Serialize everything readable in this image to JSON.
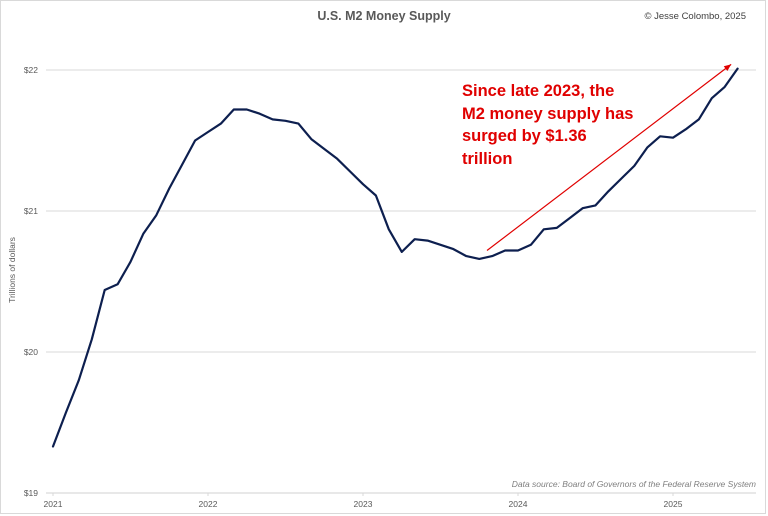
{
  "chart_data": {
    "type": "line",
    "title": "U.S. M2 Money Supply",
    "credit": "© Jesse Colombo, 2025",
    "ylabel": "Trillions of dollars",
    "xlabel": "",
    "source": "Data source: Board of Governors of the Federal Reserve System",
    "ylim": [
      19,
      22
    ],
    "yticks": [
      {
        "value": 19,
        "label": "$19"
      },
      {
        "value": 20,
        "label": "$20"
      },
      {
        "value": 21,
        "label": "$21"
      },
      {
        "value": 22,
        "label": "$22"
      }
    ],
    "xlim_months": [
      0,
      54
    ],
    "xticks": [
      {
        "month": 0,
        "label": "2021"
      },
      {
        "month": 12,
        "label": "2022"
      },
      {
        "month": 24,
        "label": "2023"
      },
      {
        "month": 36,
        "label": "2024"
      },
      {
        "month": 48,
        "label": "2025"
      }
    ],
    "grid": true,
    "series": [
      {
        "name": "M2 Money Supply",
        "color": "#0d1f4f",
        "x_month_index": [
          0,
          1,
          2,
          3,
          4,
          5,
          6,
          7,
          8,
          9,
          10,
          11,
          12,
          13,
          14,
          15,
          16,
          17,
          18,
          19,
          20,
          21,
          22,
          23,
          24,
          25,
          26,
          27,
          28,
          29,
          30,
          31,
          32,
          33,
          34,
          35,
          36,
          37,
          38,
          39,
          40,
          41,
          42,
          43,
          44,
          45,
          46,
          47,
          48,
          49,
          50,
          51,
          52,
          53
        ],
        "values": [
          19.33,
          19.57,
          19.8,
          20.09,
          20.44,
          20.48,
          20.64,
          20.84,
          20.97,
          21.16,
          21.33,
          21.5,
          21.56,
          21.62,
          21.72,
          21.72,
          21.69,
          21.65,
          21.64,
          21.62,
          21.51,
          21.44,
          21.37,
          21.28,
          21.19,
          21.11,
          20.87,
          20.71,
          20.8,
          20.79,
          20.76,
          20.73,
          20.68,
          20.66,
          20.68,
          20.72,
          20.72,
          20.76,
          20.87,
          20.88,
          20.95,
          21.02,
          21.04,
          21.14,
          21.23,
          21.32,
          21.45,
          21.53,
          21.52,
          21.58,
          21.65,
          21.8,
          21.88,
          22.01
        ]
      }
    ],
    "annotation": {
      "lines": [
        "Since late 2023, the",
        "M2 money supply has",
        "surged by $1.36",
        "trillion"
      ],
      "color": "#e00000",
      "arrow": {
        "from": {
          "month": 33.6,
          "value": 20.72
        },
        "to": {
          "month": 52.5,
          "value": 22.04
        }
      }
    }
  }
}
